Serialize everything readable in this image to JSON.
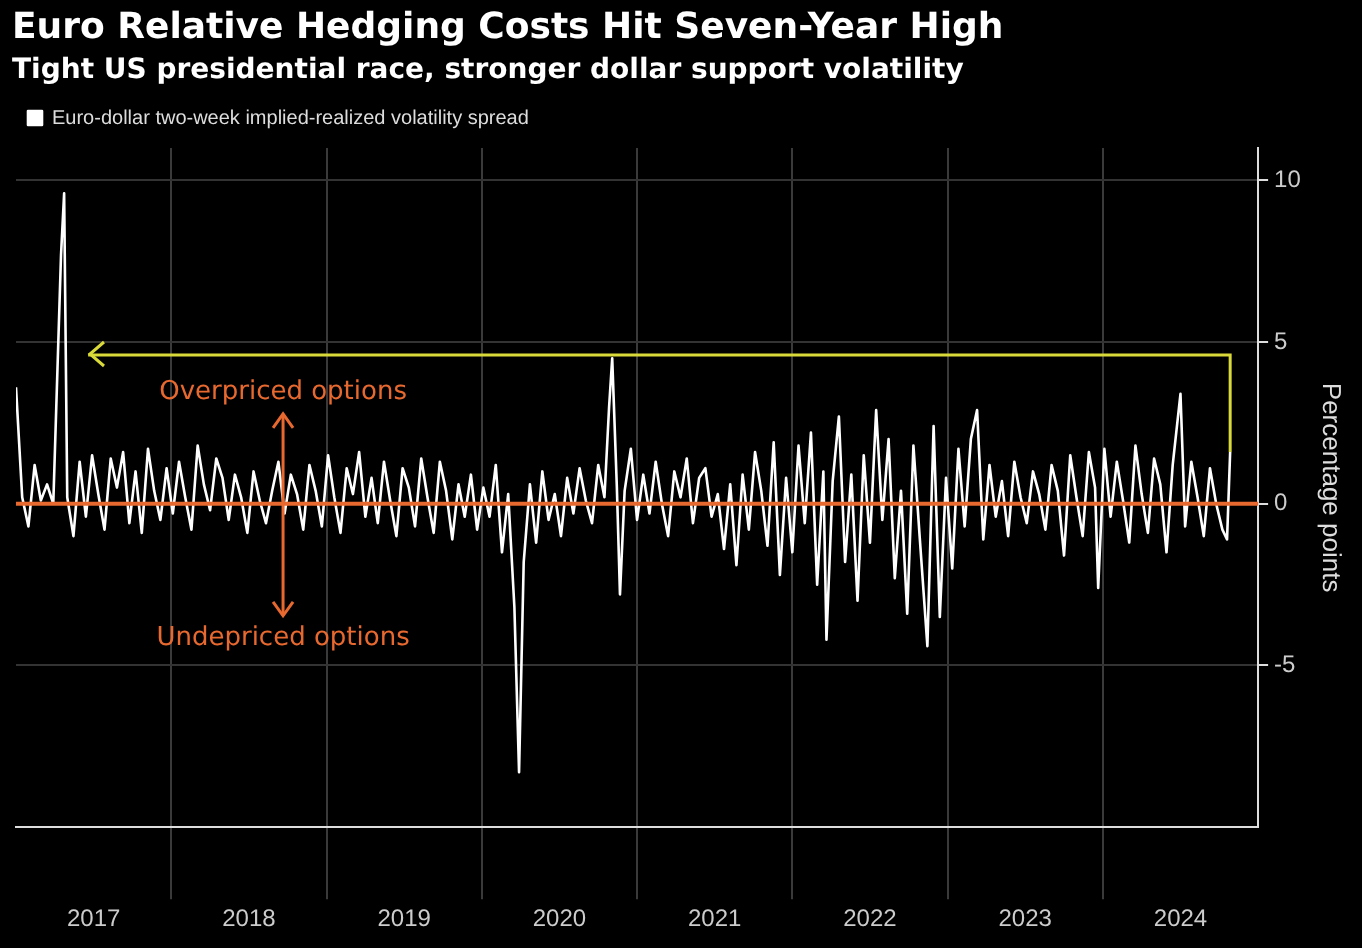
{
  "chart_data": {
    "type": "line",
    "title": "Euro Relative Hedging Costs Hit Seven-Year High",
    "subtitle": "Tight US presidential race, stronger dollar support volatility",
    "ylabel": "Percentage points",
    "xlim": [
      2017,
      2025
    ],
    "ylim": [
      -10,
      11
    ],
    "yticks": [
      -5,
      0,
      5,
      10
    ],
    "xticks": [
      {
        "value": 2017.5,
        "label": "2017"
      },
      {
        "value": 2018,
        "label": null
      },
      {
        "value": 2018.5,
        "label": "2018"
      },
      {
        "value": 2019,
        "label": null
      },
      {
        "value": 2019.5,
        "label": "2019"
      },
      {
        "value": 2020,
        "label": null
      },
      {
        "value": 2020.5,
        "label": "2020"
      },
      {
        "value": 2021,
        "label": null
      },
      {
        "value": 2021.5,
        "label": "2021"
      },
      {
        "value": 2022,
        "label": null
      },
      {
        "value": 2022.5,
        "label": "2022"
      },
      {
        "value": 2023,
        "label": null
      },
      {
        "value": 2023.5,
        "label": "2023"
      },
      {
        "value": 2024,
        "label": null
      },
      {
        "value": 2024.5,
        "label": "2024"
      }
    ],
    "grid": true,
    "legend": "top left",
    "marker": "none",
    "line_style": "solid",
    "ref_lines": [
      {
        "axis": "y",
        "value": 0,
        "color": "#e8692f"
      },
      {
        "axis": "y",
        "value": 4.6,
        "color": "#d9d93a"
      }
    ],
    "annotations": [
      "Overpriced options",
      "Undepriced options"
    ],
    "series": [
      {
        "name": "Euro-dollar two-week implied-realized volatility spread",
        "color": "#ffffff",
        "x": [
          2017.0,
          2017.04,
          2017.08,
          2017.12,
          2017.16,
          2017.2,
          2017.24,
          2017.29,
          2017.31,
          2017.33,
          2017.37,
          2017.41,
          2017.45,
          2017.49,
          2017.53,
          2017.57,
          2017.61,
          2017.65,
          2017.69,
          2017.73,
          2017.77,
          2017.81,
          2017.85,
          2017.89,
          2017.93,
          2017.97,
          2018.01,
          2018.05,
          2018.09,
          2018.13,
          2018.17,
          2018.21,
          2018.25,
          2018.29,
          2018.33,
          2018.37,
          2018.41,
          2018.45,
          2018.49,
          2018.53,
          2018.57,
          2018.61,
          2018.65,
          2018.69,
          2018.73,
          2018.77,
          2018.81,
          2018.85,
          2018.89,
          2018.93,
          2018.97,
          2019.01,
          2019.05,
          2019.09,
          2019.13,
          2019.17,
          2019.21,
          2019.25,
          2019.29,
          2019.33,
          2019.37,
          2019.41,
          2019.45,
          2019.49,
          2019.53,
          2019.57,
          2019.61,
          2019.65,
          2019.69,
          2019.73,
          2019.77,
          2019.81,
          2019.85,
          2019.89,
          2019.93,
          2019.97,
          2020.01,
          2020.05,
          2020.09,
          2020.13,
          2020.17,
          2020.21,
          2020.24,
          2020.27,
          2020.31,
          2020.35,
          2020.39,
          2020.43,
          2020.47,
          2020.51,
          2020.55,
          2020.59,
          2020.63,
          2020.67,
          2020.71,
          2020.75,
          2020.79,
          2020.82,
          2020.84,
          2020.87,
          2020.89,
          2020.92,
          2020.96,
          2021.0,
          2021.04,
          2021.08,
          2021.12,
          2021.16,
          2021.2,
          2021.24,
          2021.28,
          2021.32,
          2021.36,
          2021.4,
          2021.44,
          2021.48,
          2021.52,
          2021.56,
          2021.6,
          2021.64,
          2021.68,
          2021.72,
          2021.76,
          2021.8,
          2021.84,
          2021.88,
          2021.92,
          2021.96,
          2022.0,
          2022.04,
          2022.08,
          2022.12,
          2022.16,
          2022.2,
          2022.22,
          2022.26,
          2022.3,
          2022.34,
          2022.38,
          2022.42,
          2022.46,
          2022.5,
          2022.54,
          2022.58,
          2022.62,
          2022.66,
          2022.7,
          2022.74,
          2022.78,
          2022.82,
          2022.87,
          2022.91,
          2022.95,
          2022.99,
          2023.03,
          2023.07,
          2023.11,
          2023.15,
          2023.19,
          2023.23,
          2023.27,
          2023.31,
          2023.35,
          2023.39,
          2023.43,
          2023.47,
          2023.51,
          2023.55,
          2023.59,
          2023.63,
          2023.67,
          2023.71,
          2023.75,
          2023.79,
          2023.83,
          2023.87,
          2023.91,
          2023.95,
          2023.97,
          2024.01,
          2024.05,
          2024.09,
          2024.13,
          2024.17,
          2024.21,
          2024.25,
          2024.29,
          2024.33,
          2024.37,
          2024.41,
          2024.45,
          2024.5,
          2024.53,
          2024.57,
          2024.61,
          2024.65,
          2024.69,
          2024.73,
          2024.77,
          2024.8,
          2024.82
        ],
        "values": [
          3.6,
          0.2,
          -0.7,
          1.2,
          0.1,
          0.6,
          0.0,
          7.7,
          9.6,
          0.2,
          -1.0,
          1.3,
          -0.4,
          1.5,
          0.3,
          -0.8,
          1.4,
          0.5,
          1.6,
          -0.6,
          1.0,
          -0.9,
          1.7,
          0.4,
          -0.5,
          1.1,
          -0.3,
          1.3,
          0.2,
          -0.8,
          1.8,
          0.6,
          -0.2,
          1.4,
          0.8,
          -0.5,
          0.9,
          0.2,
          -0.9,
          1.0,
          0.1,
          -0.6,
          0.4,
          1.3,
          -0.3,
          0.9,
          0.3,
          -0.8,
          1.2,
          0.4,
          -0.7,
          1.5,
          0.2,
          -0.9,
          1.1,
          0.3,
          1.6,
          -0.4,
          0.8,
          -0.6,
          1.3,
          0.1,
          -1.0,
          1.1,
          0.5,
          -0.7,
          1.4,
          0.2,
          -0.9,
          1.3,
          0.4,
          -1.1,
          0.6,
          -0.4,
          0.9,
          -0.8,
          0.5,
          -0.4,
          1.2,
          -1.5,
          0.3,
          -3.2,
          -8.3,
          -1.8,
          0.6,
          -1.2,
          1.0,
          -0.5,
          0.3,
          -1.0,
          0.8,
          -0.3,
          1.1,
          0.1,
          -0.6,
          1.2,
          0.2,
          3.0,
          4.5,
          0.5,
          -2.8,
          0.4,
          1.7,
          -0.5,
          0.9,
          -0.3,
          1.3,
          0.0,
          -1.0,
          1.0,
          0.2,
          1.4,
          -0.6,
          0.8,
          1.1,
          -0.4,
          0.3,
          -1.4,
          0.6,
          -1.9,
          0.9,
          -0.8,
          1.6,
          0.4,
          -1.3,
          1.9,
          -2.2,
          0.8,
          -1.5,
          1.8,
          -0.6,
          2.2,
          -2.5,
          1.0,
          -4.2,
          0.7,
          2.7,
          -1.8,
          0.9,
          -3.0,
          1.5,
          -1.2,
          2.9,
          -0.5,
          2.0,
          -2.3,
          0.4,
          -3.4,
          1.8,
          -1.0,
          -4.4,
          2.4,
          -3.5,
          0.8,
          -2.0,
          1.7,
          -0.7,
          2.0,
          2.9,
          -1.1,
          1.2,
          -0.4,
          0.7,
          -1.0,
          1.3,
          0.2,
          -0.6,
          1.0,
          0.3,
          -0.8,
          1.2,
          0.4,
          -1.6,
          1.5,
          0.2,
          -1.0,
          1.6,
          0.5,
          -2.6,
          1.7,
          -0.4,
          1.3,
          0.1,
          -1.2,
          1.8,
          0.3,
          -0.9,
          1.4,
          0.6,
          -1.5,
          1.2,
          3.4,
          -0.7,
          1.3,
          0.2,
          -1.0,
          1.1,
          0.0,
          -0.8,
          -1.1,
          1.6
        ]
      }
    ]
  }
}
